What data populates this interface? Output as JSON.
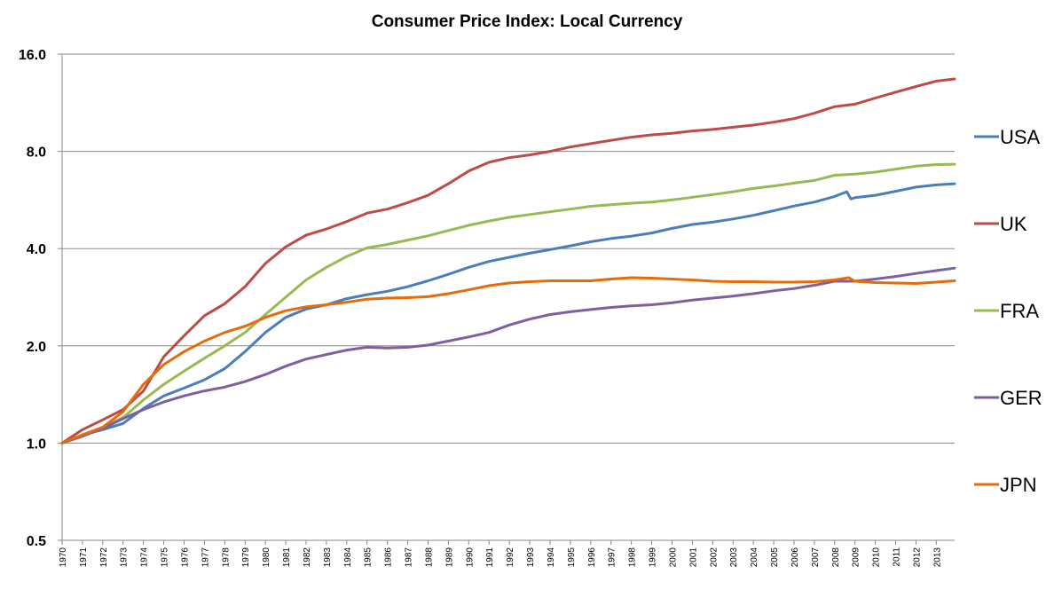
{
  "chart_data": {
    "type": "line",
    "title": "Consumer Price Index: Local Currency",
    "xlabel": "",
    "ylabel": "",
    "y_scale": "log2",
    "ylim": [
      0.5,
      16.0
    ],
    "y_ticks": [
      "0.5",
      "1.0",
      "2.0",
      "4.0",
      "8.0",
      "16.0"
    ],
    "y_tick_values": [
      0.5,
      1,
      2,
      4,
      8,
      16
    ],
    "xlim": [
      1970,
      2013.9
    ],
    "x_ticks": [
      "1970",
      "1971",
      "1972",
      "1973",
      "1974",
      "1975",
      "1976",
      "1977",
      "1978",
      "1979",
      "1980",
      "1981",
      "1982",
      "1983",
      "1984",
      "1985",
      "1986",
      "1987",
      "1988",
      "1989",
      "1990",
      "1991",
      "1992",
      "1993",
      "1994",
      "1995",
      "1996",
      "1997",
      "1998",
      "1999",
      "2000",
      "2001",
      "2002",
      "2003",
      "2004",
      "2005",
      "2006",
      "2007",
      "2008",
      "2009",
      "2010",
      "2011",
      "2012",
      "2013"
    ],
    "grid": "horizontal",
    "legend": "right",
    "series": [
      {
        "name": "USA",
        "color": "#4a7ebb",
        "x": [
          1970,
          1971,
          1972,
          1973,
          1974,
          1975,
          1976,
          1977,
          1978,
          1979,
          1980,
          1981,
          1982,
          1983,
          1984,
          1985,
          1986,
          1987,
          1988,
          1989,
          1990,
          1991,
          1992,
          1993,
          1994,
          1995,
          1996,
          1997,
          1998,
          1999,
          2000,
          2001,
          2002,
          2003,
          2004,
          2005,
          2006,
          2007,
          2008,
          2008.6,
          2008.8,
          2009,
          2010,
          2011,
          2012,
          2013,
          2013.9
        ],
        "values": [
          1.0,
          1.06,
          1.1,
          1.15,
          1.28,
          1.4,
          1.48,
          1.57,
          1.7,
          1.92,
          2.2,
          2.45,
          2.6,
          2.68,
          2.8,
          2.88,
          2.95,
          3.05,
          3.18,
          3.33,
          3.5,
          3.65,
          3.76,
          3.87,
          3.97,
          4.08,
          4.2,
          4.3,
          4.37,
          4.47,
          4.62,
          4.75,
          4.83,
          4.94,
          5.07,
          5.24,
          5.42,
          5.57,
          5.8,
          6.0,
          5.7,
          5.75,
          5.85,
          6.02,
          6.2,
          6.3,
          6.35
        ]
      },
      {
        "name": "UK",
        "color": "#be4b48",
        "x": [
          1970,
          1971,
          1972,
          1973,
          1974,
          1975,
          1976,
          1977,
          1978,
          1979,
          1980,
          1981,
          1982,
          1983,
          1984,
          1985,
          1986,
          1987,
          1988,
          1989,
          1990,
          1991,
          1992,
          1993,
          1994,
          1995,
          1996,
          1997,
          1998,
          1999,
          2000,
          2001,
          2002,
          2003,
          2004,
          2005,
          2006,
          2007,
          2008,
          2009,
          2010,
          2011,
          2012,
          2013,
          2013.9
        ],
        "values": [
          1.0,
          1.1,
          1.18,
          1.27,
          1.45,
          1.85,
          2.15,
          2.48,
          2.7,
          3.05,
          3.6,
          4.05,
          4.4,
          4.6,
          4.85,
          5.15,
          5.3,
          5.55,
          5.85,
          6.35,
          6.95,
          7.4,
          7.65,
          7.8,
          8.0,
          8.25,
          8.45,
          8.65,
          8.85,
          9.0,
          9.1,
          9.25,
          9.35,
          9.5,
          9.65,
          9.85,
          10.1,
          10.5,
          11.0,
          11.2,
          11.7,
          12.2,
          12.7,
          13.2,
          13.4
        ]
      },
      {
        "name": "FRA",
        "color": "#98b954",
        "x": [
          1970,
          1971,
          1972,
          1973,
          1974,
          1975,
          1976,
          1977,
          1978,
          1979,
          1980,
          1981,
          1982,
          1983,
          1984,
          1985,
          1986,
          1987,
          1988,
          1989,
          1990,
          1991,
          1992,
          1993,
          1994,
          1995,
          1996,
          1997,
          1998,
          1999,
          2000,
          2001,
          2002,
          2003,
          2004,
          2005,
          2006,
          2007,
          2008,
          2009,
          2010,
          2011,
          2012,
          2013,
          2013.9
        ],
        "values": [
          1.0,
          1.06,
          1.12,
          1.2,
          1.36,
          1.52,
          1.67,
          1.83,
          2.0,
          2.2,
          2.5,
          2.83,
          3.2,
          3.5,
          3.78,
          4.02,
          4.12,
          4.25,
          4.38,
          4.55,
          4.72,
          4.87,
          5.0,
          5.1,
          5.2,
          5.3,
          5.41,
          5.47,
          5.53,
          5.57,
          5.66,
          5.77,
          5.88,
          6.0,
          6.14,
          6.25,
          6.38,
          6.5,
          6.75,
          6.8,
          6.9,
          7.05,
          7.2,
          7.28,
          7.3
        ]
      },
      {
        "name": "GER",
        "color": "#7e5fa0",
        "x": [
          1970,
          1971,
          1972,
          1973,
          1974,
          1975,
          1976,
          1977,
          1978,
          1979,
          1980,
          1981,
          1982,
          1983,
          1984,
          1985,
          1986,
          1987,
          1988,
          1989,
          1990,
          1991,
          1992,
          1993,
          1994,
          1995,
          1996,
          1997,
          1998,
          1999,
          2000,
          2001,
          2002,
          2003,
          2004,
          2005,
          2006,
          2007,
          2008,
          2009,
          2010,
          2011,
          2012,
          2013,
          2013.9
        ],
        "values": [
          1.0,
          1.05,
          1.11,
          1.19,
          1.27,
          1.34,
          1.4,
          1.45,
          1.49,
          1.55,
          1.63,
          1.73,
          1.82,
          1.88,
          1.94,
          1.98,
          1.97,
          1.98,
          2.01,
          2.07,
          2.13,
          2.2,
          2.32,
          2.42,
          2.5,
          2.55,
          2.59,
          2.63,
          2.66,
          2.68,
          2.72,
          2.77,
          2.81,
          2.85,
          2.9,
          2.96,
          3.01,
          3.08,
          3.17,
          3.17,
          3.22,
          3.28,
          3.35,
          3.42,
          3.48
        ]
      },
      {
        "name": "JPN",
        "color": "#e46c0a",
        "x": [
          1970,
          1971,
          1972,
          1973,
          1974,
          1975,
          1976,
          1977,
          1978,
          1979,
          1980,
          1981,
          1982,
          1983,
          1984,
          1985,
          1986,
          1987,
          1988,
          1989,
          1990,
          1991,
          1992,
          1993,
          1994,
          1995,
          1996,
          1997,
          1998,
          1999,
          2000,
          2001,
          2002,
          2003,
          2004,
          2005,
          2006,
          2007,
          2008,
          2008.7,
          2009,
          2010,
          2011,
          2012,
          2013,
          2013.9
        ],
        "values": [
          1.0,
          1.06,
          1.12,
          1.25,
          1.52,
          1.75,
          1.92,
          2.07,
          2.2,
          2.3,
          2.45,
          2.57,
          2.64,
          2.68,
          2.73,
          2.79,
          2.81,
          2.82,
          2.84,
          2.9,
          2.98,
          3.07,
          3.13,
          3.16,
          3.18,
          3.18,
          3.18,
          3.22,
          3.25,
          3.24,
          3.22,
          3.2,
          3.17,
          3.16,
          3.16,
          3.15,
          3.15,
          3.16,
          3.2,
          3.25,
          3.17,
          3.14,
          3.13,
          3.12,
          3.15,
          3.18
        ]
      }
    ]
  }
}
